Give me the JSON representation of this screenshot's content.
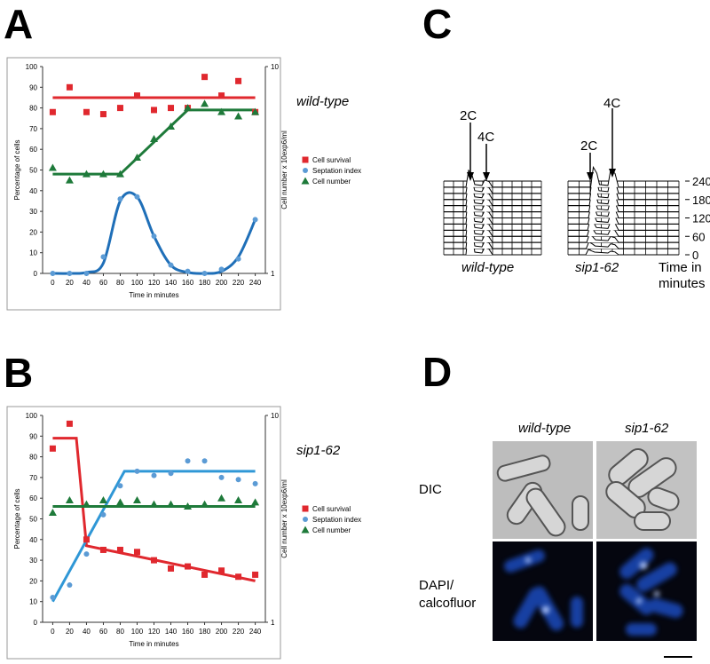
{
  "chart_data": [
    {
      "type": "scatter",
      "panel_label": "A",
      "annotation": "wild-type",
      "x_label": "Time in minutes",
      "y_label": "Percentage of cells",
      "y2_label": "Cell number x 10exp6/ml",
      "x": [
        0,
        20,
        40,
        60,
        80,
        100,
        120,
        140,
        160,
        180,
        200,
        220,
        240
      ],
      "xlim": [
        -12,
        252
      ],
      "xticks": [
        0,
        20,
        40,
        60,
        80,
        100,
        120,
        140,
        160,
        180,
        200,
        220,
        240
      ],
      "ylim": [
        0,
        100
      ],
      "yticks": [
        0,
        10,
        20,
        30,
        40,
        50,
        60,
        70,
        80,
        90,
        100
      ],
      "y2lim": [
        1,
        10
      ],
      "y2ticks": [
        1,
        10
      ],
      "y2scale": "log",
      "series": [
        {
          "name": "Cell survival",
          "color": "#e0282e",
          "marker": "square",
          "axis": "y",
          "values": [
            78,
            90,
            78,
            77,
            80,
            86,
            79,
            80,
            80,
            95,
            86,
            93,
            78
          ],
          "fit": {
            "x": [
              0,
              240
            ],
            "values": [
              85,
              85
            ],
            "smooth": false
          }
        },
        {
          "name": "Septation index",
          "color": "#5b9bd5",
          "line_color": "#1f6fb8",
          "marker": "circle",
          "axis": "y",
          "values": [
            0,
            0,
            0,
            8,
            36,
            37,
            18,
            4,
            1,
            0,
            2,
            7,
            26
          ],
          "fit": {
            "x": [
              0,
              20,
              40,
              60,
              80,
              100,
              120,
              140,
              160,
              180,
              200,
              220,
              240
            ],
            "values": [
              0,
              0,
              0.5,
              5,
              35,
              37,
              18,
              4,
              0.5,
              0,
              1,
              8,
              26
            ],
            "smooth": true
          }
        },
        {
          "name": "Cell number",
          "color": "#1e7a3a",
          "marker": "triangle",
          "axis": "y2",
          "values": [
            3.24,
            2.82,
            3.02,
            3.02,
            3.02,
            3.63,
            4.47,
            5.13,
            6.31,
            6.61,
            6.03,
            5.75,
            6.03
          ],
          "fit": {
            "x": [
              0,
              80,
              160,
              240
            ],
            "values": [
              3.02,
              3.02,
              6.17,
              6.17
            ],
            "smooth": false
          }
        }
      ]
    },
    {
      "type": "scatter",
      "panel_label": "B",
      "annotation": "sip1-62",
      "x_label": "Time in minutes",
      "y_label": "Percentage of cells",
      "y2_label": "Cell number x 10exp6/ml",
      "x": [
        0,
        20,
        40,
        60,
        80,
        100,
        120,
        140,
        160,
        180,
        200,
        220,
        240
      ],
      "xlim": [
        -12,
        252
      ],
      "xticks": [
        0,
        20,
        40,
        60,
        80,
        100,
        120,
        140,
        160,
        180,
        200,
        220,
        240
      ],
      "ylim": [
        0,
        100
      ],
      "yticks": [
        0,
        10,
        20,
        30,
        40,
        50,
        60,
        70,
        80,
        90,
        100
      ],
      "y2lim": [
        1,
        10
      ],
      "y2ticks": [
        1,
        10
      ],
      "y2scale": "log",
      "series": [
        {
          "name": "Cell survival",
          "color": "#e0282e",
          "marker": "square",
          "axis": "y",
          "values": [
            84,
            96,
            40,
            35,
            35,
            34,
            30,
            26,
            27,
            23,
            25,
            22,
            23
          ],
          "fit": {
            "x": [
              0,
              28,
              40,
              240
            ],
            "values": [
              89,
              89,
              37,
              20
            ],
            "smooth": false
          }
        },
        {
          "name": "Septation index",
          "color": "#5b9bd5",
          "line_color": "#2f97d6",
          "marker": "circle",
          "axis": "y",
          "values": [
            12,
            18,
            33,
            52,
            66,
            73,
            71,
            72,
            78,
            78,
            70,
            69,
            67
          ],
          "fit": {
            "x": [
              0,
              85,
              240
            ],
            "values": [
              10,
              73,
              73
            ],
            "smooth": false
          }
        },
        {
          "name": "Cell number",
          "color": "#1e7a3a",
          "marker": "triangle",
          "axis": "y2",
          "values": [
            3.39,
            3.89,
            3.72,
            3.89,
            3.8,
            3.89,
            3.72,
            3.72,
            3.63,
            3.72,
            3.98,
            3.89,
            3.8
          ],
          "fit": {
            "x": [
              0,
              240
            ],
            "values": [
              3.63,
              3.63
            ],
            "smooth": false
          }
        }
      ]
    }
  ],
  "panel_c": {
    "label": "C",
    "peak_labels": [
      "2C",
      "4C",
      "2C",
      "4C"
    ],
    "strains": [
      "wild-type",
      "sip1-62"
    ],
    "time_ticks": [
      240,
      180,
      120,
      60,
      0
    ],
    "time_label": "Time in minutes"
  },
  "panel_d": {
    "label": "D",
    "columns": [
      "wild-type",
      "sip1-62"
    ],
    "rows": [
      "DIC",
      "DAPI/ calcofluor"
    ]
  }
}
